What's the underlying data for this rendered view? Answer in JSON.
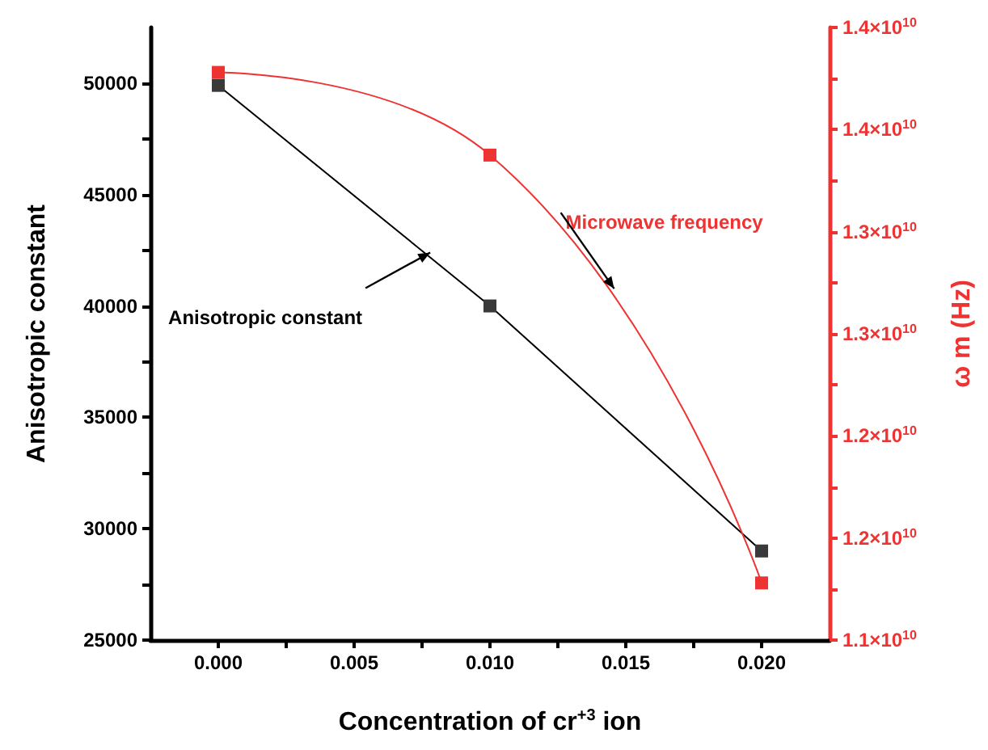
{
  "chart_data": {
    "type": "line",
    "xlabel": "Concentration of cr$^{+3}$ ion",
    "ylabel": "Anisotropic constant",
    "y2label": "ω m (Hz)",
    "x": [
      0,
      0.01,
      0.02
    ],
    "series": [
      {
        "name": "Anisotropic constant",
        "color": "#3a3a3a",
        "values": [
          49900,
          40000,
          29000
        ]
      },
      {
        "name": "Microwave frequency",
        "color": "#ee3333",
        "axis": "y2",
        "values": [
          13780000000.0,
          13375000000.0,
          11280000000.0
        ]
      }
    ],
    "xlim": [
      -0.0025,
      0.0225
    ],
    "xticks": [
      {
        "value": 0,
        "label": "0.000"
      },
      {
        "value": 0.005,
        "label": "0.005"
      },
      {
        "value": 0.01,
        "label": "0.010"
      },
      {
        "value": 0.015,
        "label": "0.015"
      },
      {
        "value": 0.02,
        "label": "0.020"
      }
    ],
    "ylim": [
      25000,
      52500
    ],
    "yticks": [
      25000,
      30000,
      35000,
      40000,
      45000,
      50000
    ],
    "y2lim": [
      11000000000.0,
      14000000000.0
    ],
    "y2ticks": [
      {
        "value": 11000000000.0,
        "label": "1.1×10$^{10}$"
      },
      {
        "value": 11500000000.0,
        "label": "1.2×10$^{10}$"
      },
      {
        "value": 12000000000.0,
        "label": "1.2×10$^{10}$"
      },
      {
        "value": 12500000000.0,
        "label": "1.3×10$^{10}$"
      },
      {
        "value": 13000000000.0,
        "label": "1.3×10$^{10}$"
      },
      {
        "value": 13500000000.0,
        "label": "1.4×10$^{10}$"
      },
      {
        "value": 14000000000.0,
        "label": "1.4×10$^{10}$"
      }
    ],
    "marker": "square",
    "line_style": "solid",
    "grid": false,
    "legend": false
  }
}
